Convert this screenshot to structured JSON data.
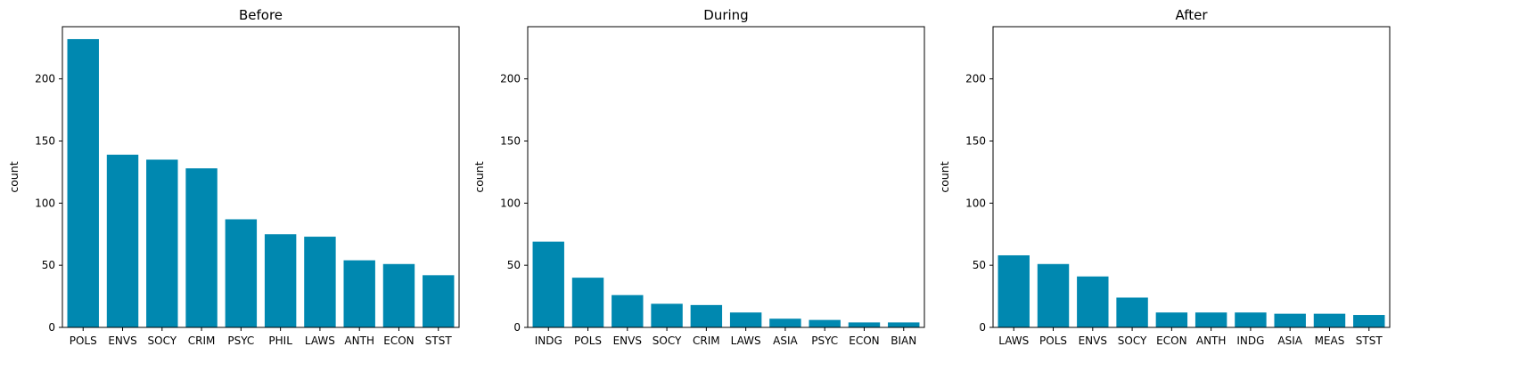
{
  "chart_data": [
    {
      "type": "bar",
      "title": "Before",
      "ylabel": "count",
      "xlabel": "",
      "ylim": [
        0,
        242
      ],
      "yticks": [
        0,
        50,
        100,
        150,
        200
      ],
      "categories": [
        "POLS",
        "ENVS",
        "SOCY",
        "CRIM",
        "PSYC",
        "PHIL",
        "LAWS",
        "ANTH",
        "ECON",
        "STST"
      ],
      "values": [
        232,
        139,
        135,
        128,
        87,
        75,
        73,
        54,
        51,
        42
      ],
      "color": "#0088b0",
      "grid": false
    },
    {
      "type": "bar",
      "title": "During",
      "ylabel": "count",
      "xlabel": "",
      "ylim": [
        0,
        242
      ],
      "yticks": [
        0,
        50,
        100,
        150,
        200
      ],
      "categories": [
        "INDG",
        "POLS",
        "ENVS",
        "SOCY",
        "CRIM",
        "LAWS",
        "ASIA",
        "PSYC",
        "ECON",
        "BIAN"
      ],
      "values": [
        69,
        40,
        26,
        19,
        18,
        12,
        7,
        6,
        4,
        4
      ],
      "color": "#0088b0",
      "grid": false
    },
    {
      "type": "bar",
      "title": "After",
      "ylabel": "count",
      "xlabel": "",
      "ylim": [
        0,
        242
      ],
      "yticks": [
        0,
        50,
        100,
        150,
        200
      ],
      "categories": [
        "LAWS",
        "POLS",
        "ENVS",
        "SOCY",
        "ECON",
        "ANTH",
        "INDG",
        "ASIA",
        "MEAS",
        "STST"
      ],
      "values": [
        58,
        51,
        41,
        24,
        12,
        12,
        12,
        11,
        11,
        10
      ],
      "color": "#0088b0",
      "grid": false
    }
  ]
}
